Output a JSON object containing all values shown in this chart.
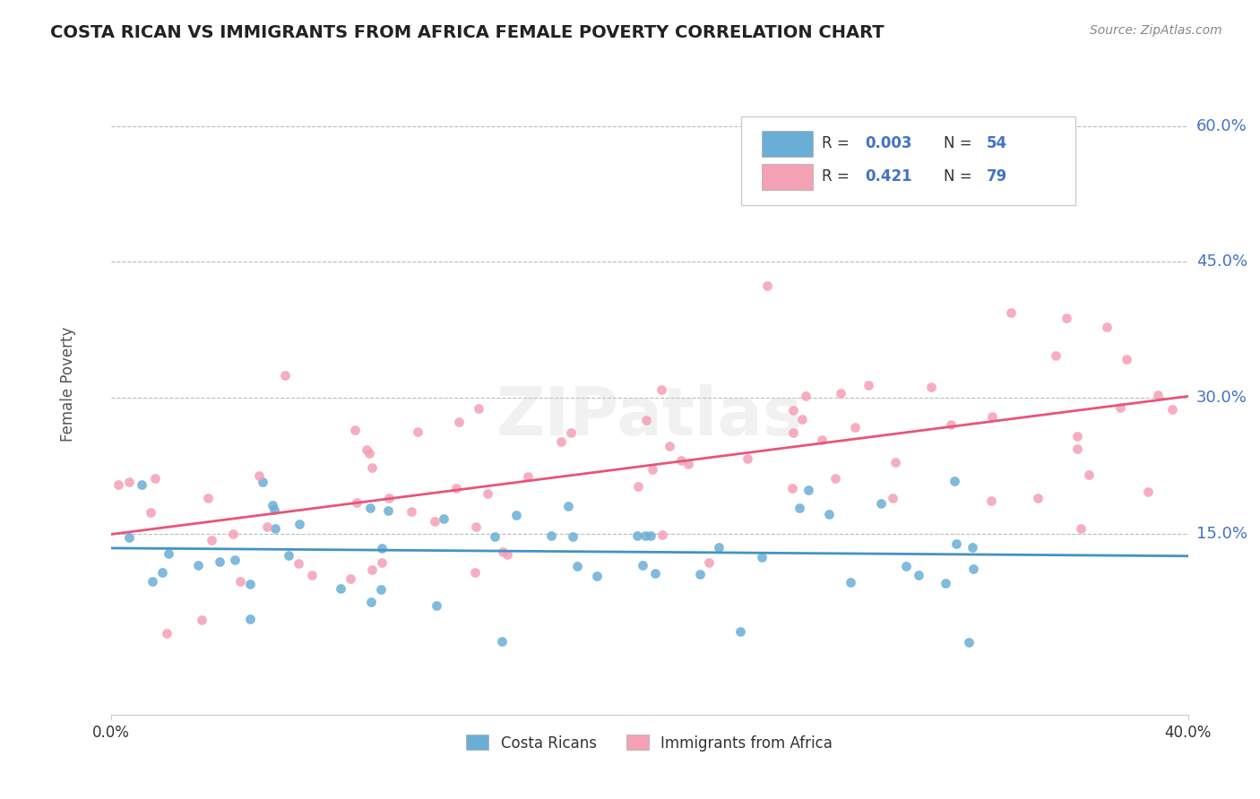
{
  "title": "COSTA RICAN VS IMMIGRANTS FROM AFRICA FEMALE POVERTY CORRELATION CHART",
  "source": "Source: ZipAtlas.com",
  "ylabel": "Female Poverty",
  "ytick_labels": [
    "60.0%",
    "45.0%",
    "30.0%",
    "15.0%"
  ],
  "ytick_values": [
    0.6,
    0.45,
    0.3,
    0.15
  ],
  "xlim": [
    0.0,
    0.4
  ],
  "ylim": [
    -0.05,
    0.68
  ],
  "legend_r1": "R = 0.003",
  "legend_n1": "N = 54",
  "legend_r2": "R = 0.421",
  "legend_n2": "N = 79",
  "color_cr": "#6aaed6",
  "color_africa": "#f4a0b5",
  "line_color_cr": "#4393c3",
  "line_color_africa": "#e8547a",
  "label_color_blue": "#4472c4",
  "grid_color": "#bbbbbb",
  "title_color": "#222222",
  "source_color": "#888888",
  "watermark_text": "ZIPatlas"
}
